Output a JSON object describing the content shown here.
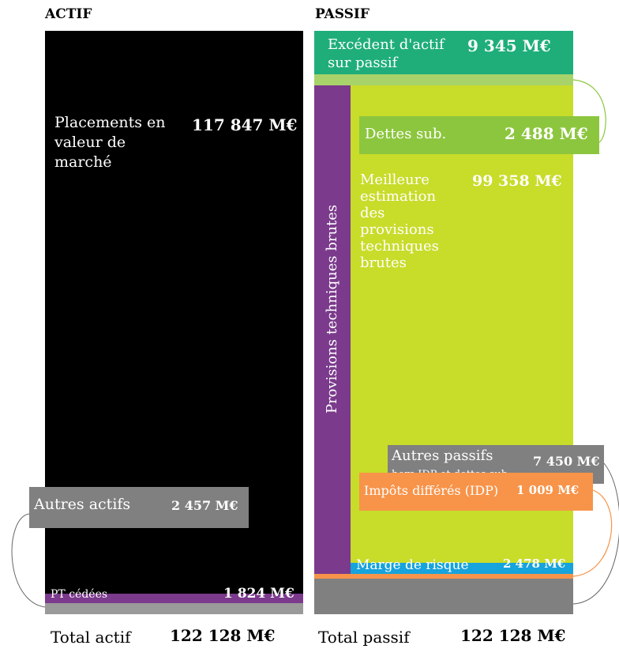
{
  "actif": {
    "header": "ACTIF",
    "placements": {
      "label": "Placements en valeur de marché",
      "value": "117 847 M€"
    },
    "autres_actifs": {
      "label": "Autres actifs",
      "value": "2 457 M€"
    },
    "pt_cedees": {
      "label": "PT cédées",
      "value": "1 824 M€"
    },
    "total": {
      "label": "Total actif",
      "value": "122 128 M€"
    }
  },
  "passif": {
    "header": "PASSIF",
    "excedent": {
      "label": "Excédent d'actif sur passif",
      "value": "9 345 M€"
    },
    "dettes_sub": {
      "label": "Dettes sub.",
      "value": "2 488 M€"
    },
    "provisions_vertical": "Provisions techniques brutes",
    "meilleure_estimation": {
      "label": "Meilleure estimation des provisions techniques brutes",
      "value": "99 358 M€"
    },
    "autres_passifs": {
      "label": "Autres passifs",
      "sublabel": "hors IDP et dettes sub.",
      "value": "7 450 M€"
    },
    "impots_differes": {
      "label": "Impôts différés (IDP)",
      "value": "1 009 M€"
    },
    "marge_risque": {
      "label": "Marge de risque",
      "value": "2 478 M€"
    },
    "total": {
      "label": "Total passif",
      "value": "122 128 M€"
    }
  },
  "colors": {
    "placements": "#000000",
    "autres": "#808080",
    "pt_cedees": "#7b3a8c",
    "excedent": "#1fae7a",
    "dettes_sub": "#8cc63e",
    "meilleure_estimation": "#c8dc2a",
    "provisions": "#7b3a8c",
    "impots": "#f7944a",
    "marge": "#17a3dc"
  }
}
